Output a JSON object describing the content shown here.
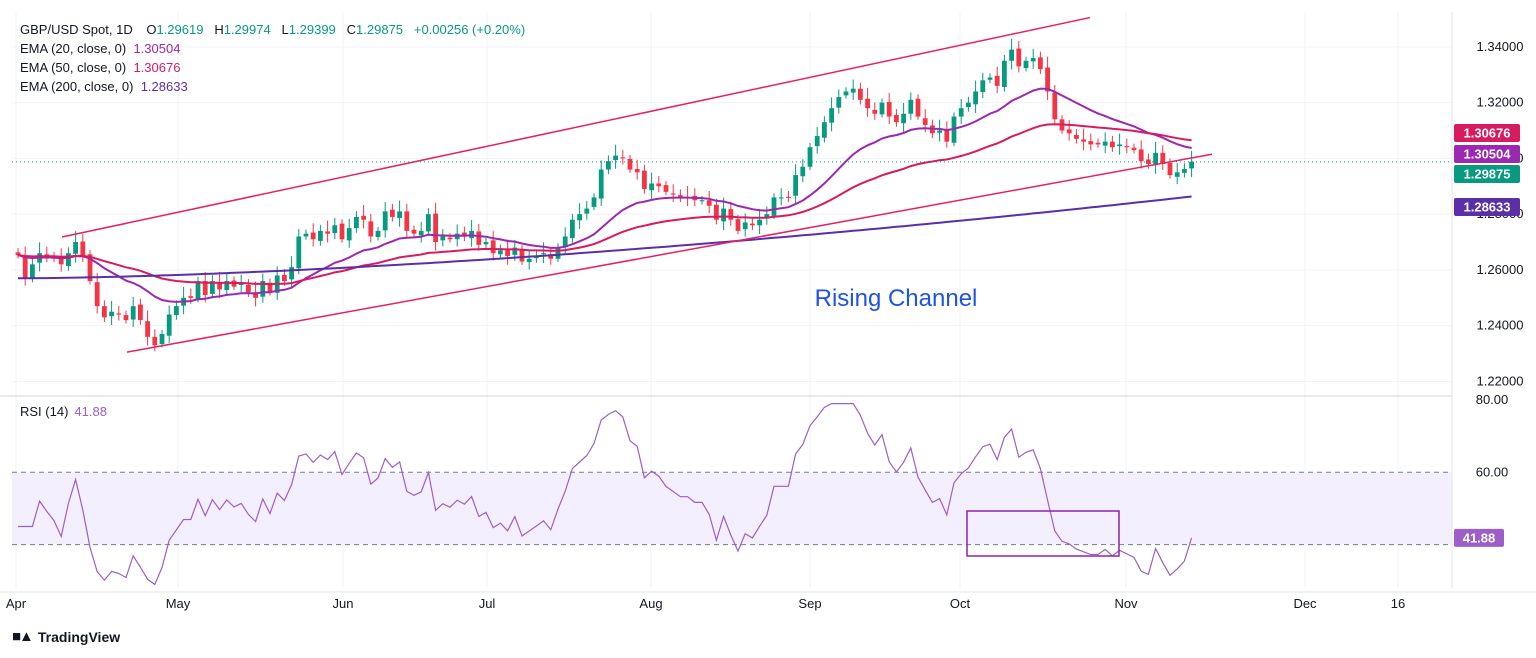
{
  "header": {
    "symbol": "GBP/USD Spot, 1D",
    "open_label": "O",
    "open": "1.29619",
    "high_label": "H",
    "high": "1.29974",
    "low_label": "L",
    "low": "1.29399",
    "close_label": "C",
    "close": "1.29875",
    "change": "+0.00256 (+0.20%)"
  },
  "indicators": [
    {
      "label": "EMA (20, close, 0)",
      "value": "1.30504",
      "color": "#9c27b0"
    },
    {
      "label": "EMA (50, close, 0)",
      "value": "1.30676",
      "color": "#d81b60"
    },
    {
      "label": "EMA (200, close, 0)",
      "value": "1.28633",
      "color": "#5b2fa8"
    }
  ],
  "rsi": {
    "label": "RSI (14)",
    "value": "41.88",
    "color": "#9c5fc7",
    "upper": 60,
    "lower": 40
  },
  "branding": {
    "name": "TradingView"
  },
  "annotation": {
    "text": "Rising Channel",
    "color": "#1e53e5"
  },
  "colors": {
    "up": "#089981",
    "down": "#f23645",
    "channel": "#e91e63",
    "grid": "#f0f3fa",
    "rsi_band": "#f3efff"
  },
  "chart_data": [
    {
      "type": "candlestick",
      "title": "GBP/USD Spot, 1D",
      "x_ticks": [
        "Apr",
        "May",
        "Jun",
        "Jul",
        "Aug",
        "Sep",
        "Oct",
        "Nov",
        "Dec",
        "16"
      ],
      "y_ticks": [
        "1.22000",
        "1.24000",
        "1.26000",
        "1.28000",
        "1.30000",
        "1.32000",
        "1.34000"
      ],
      "ylim": [
        1.2155,
        1.3525
      ],
      "last_price": {
        "label": "1.29875",
        "value": 1.29875
      },
      "price_labels": [
        {
          "label": "1.30676",
          "value": 1.30676,
          "color": "#d81b60"
        },
        {
          "label": "1.30504",
          "value": 1.30504,
          "color": "#9c27b0"
        },
        {
          "label": "1.28633",
          "value": 1.28633,
          "color": "#5b2fa8"
        }
      ],
      "closes": [
        1.2653,
        1.257,
        1.262,
        1.266,
        1.265,
        1.264,
        1.262,
        1.266,
        1.27,
        1.265,
        1.256,
        1.247,
        1.243,
        1.245,
        1.244,
        1.242,
        1.247,
        1.242,
        1.236,
        1.233,
        1.237,
        1.244,
        1.247,
        1.25,
        1.25,
        1.256,
        1.251,
        1.256,
        1.253,
        1.256,
        1.254,
        1.255,
        1.252,
        1.25,
        1.256,
        1.252,
        1.258,
        1.256,
        1.261,
        1.272,
        1.273,
        1.271,
        1.274,
        1.273,
        1.276,
        1.271,
        1.275,
        1.279,
        1.278,
        1.272,
        1.274,
        1.281,
        1.279,
        1.281,
        1.274,
        1.273,
        1.274,
        1.28,
        1.27,
        1.272,
        1.271,
        1.273,
        1.272,
        1.274,
        1.269,
        1.27,
        1.266,
        1.267,
        1.265,
        1.268,
        1.263,
        1.264,
        1.265,
        1.266,
        1.264,
        1.268,
        1.272,
        1.278,
        1.28,
        1.282,
        1.286,
        1.296,
        1.299,
        1.301,
        1.3,
        1.296,
        1.295,
        1.289,
        1.291,
        1.29,
        1.288,
        1.287,
        1.286,
        1.286,
        1.285,
        1.285,
        1.283,
        1.278,
        1.282,
        1.278,
        1.274,
        1.277,
        1.276,
        1.278,
        1.28,
        1.286,
        1.286,
        1.286,
        1.294,
        1.297,
        1.304,
        1.308,
        1.313,
        1.318,
        1.322,
        1.324,
        1.325,
        1.321,
        1.318,
        1.316,
        1.32,
        1.315,
        1.313,
        1.316,
        1.321,
        1.315,
        1.312,
        1.309,
        1.31,
        1.306,
        1.315,
        1.318,
        1.32,
        1.324,
        1.328,
        1.329,
        1.326,
        1.335,
        1.339,
        1.333,
        1.335,
        1.336,
        1.332,
        1.324,
        1.314,
        1.31,
        1.309,
        1.307,
        1.306,
        1.305,
        1.305,
        1.306,
        1.304,
        1.305,
        1.304,
        1.303,
        1.299,
        1.298,
        1.302,
        1.298,
        1.294,
        1.295,
        1.2962,
        1.2988
      ],
      "ema20_end": 1.30504,
      "ema50_end": 1.30676,
      "ema200_end": 1.28633
    },
    {
      "type": "line",
      "title": "RSI (14)",
      "y_ticks": [
        "60.00",
        "80.00"
      ],
      "ylim": [
        28,
        80
      ],
      "last_value": {
        "label": "41.88",
        "value": 41.88
      }
    }
  ]
}
